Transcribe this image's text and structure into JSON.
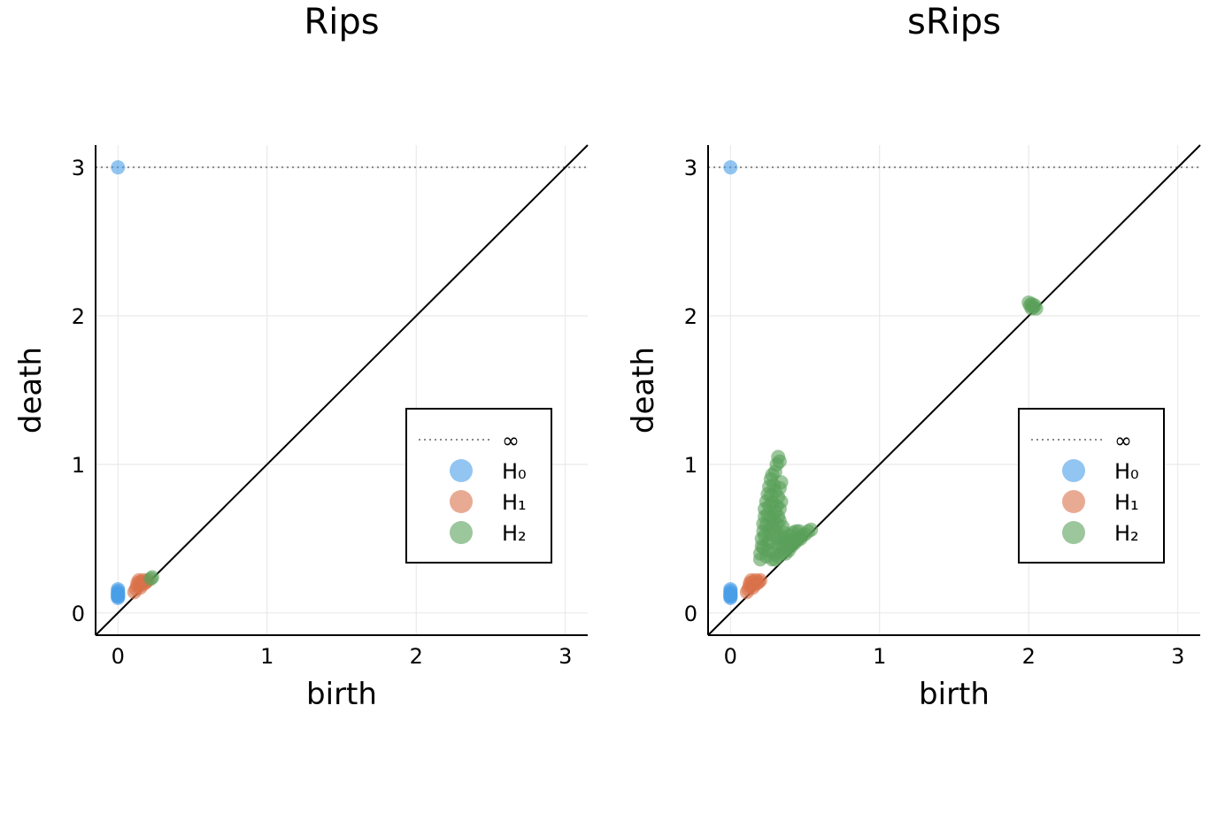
{
  "chart_data": [
    {
      "type": "scatter",
      "title": "Rips",
      "xlabel": "birth",
      "ylabel": "death",
      "xlim": [
        -0.15,
        3.15
      ],
      "ylim": [
        -0.15,
        3.15
      ],
      "xticks": [
        "0",
        "1",
        "2",
        "3"
      ],
      "yticks": [
        "0",
        "1",
        "2",
        "3"
      ],
      "grid": true,
      "legend_position": "bottom-right",
      "infinity_level": 3.0,
      "legend": [
        "∞",
        "H₀",
        "H₁",
        "H₂"
      ],
      "series": [
        {
          "name": "H₀",
          "color": "#4a9ee8",
          "points": [
            [
              0,
              3.0
            ],
            [
              0,
              0.1
            ],
            [
              0,
              0.11
            ],
            [
              0,
              0.12
            ],
            [
              0,
              0.13
            ],
            [
              0,
              0.14
            ],
            [
              0,
              0.15
            ],
            [
              0,
              0.16
            ],
            [
              0,
              0.11
            ],
            [
              0,
              0.12
            ],
            [
              0,
              0.13
            ]
          ]
        },
        {
          "name": "H₁",
          "color": "#d9714a",
          "points": [
            [
              0.11,
              0.14
            ],
            [
              0.12,
              0.16
            ],
            [
              0.13,
              0.18
            ],
            [
              0.13,
              0.2
            ],
            [
              0.14,
              0.22
            ],
            [
              0.15,
              0.17
            ],
            [
              0.15,
              0.21
            ],
            [
              0.16,
              0.19
            ],
            [
              0.17,
              0.22
            ],
            [
              0.18,
              0.2
            ],
            [
              0.19,
              0.21
            ],
            [
              0.2,
              0.22
            ]
          ]
        },
        {
          "name": "H₂",
          "color": "#5aa05a",
          "points": [
            [
              0.22,
              0.23
            ],
            [
              0.23,
              0.24
            ]
          ]
        }
      ]
    },
    {
      "type": "scatter",
      "title": "sRips",
      "xlabel": "birth",
      "ylabel": "death",
      "xlim": [
        -0.15,
        3.15
      ],
      "ylim": [
        -0.15,
        3.15
      ],
      "xticks": [
        "0",
        "1",
        "2",
        "3"
      ],
      "yticks": [
        "0",
        "1",
        "2",
        "3"
      ],
      "grid": true,
      "legend_position": "bottom-right",
      "infinity_level": 3.0,
      "legend": [
        "∞",
        "H₀",
        "H₁",
        "H₂"
      ],
      "series": [
        {
          "name": "H₀",
          "color": "#4a9ee8",
          "points": [
            [
              0,
              3.0
            ],
            [
              0,
              0.1
            ],
            [
              0,
              0.11
            ],
            [
              0,
              0.12
            ],
            [
              0,
              0.13
            ],
            [
              0,
              0.14
            ],
            [
              0,
              0.15
            ],
            [
              0,
              0.16
            ],
            [
              0,
              0.11
            ],
            [
              0,
              0.12
            ],
            [
              0,
              0.13
            ]
          ]
        },
        {
          "name": "H₁",
          "color": "#d9714a",
          "points": [
            [
              0.11,
              0.14
            ],
            [
              0.12,
              0.16
            ],
            [
              0.13,
              0.18
            ],
            [
              0.13,
              0.2
            ],
            [
              0.14,
              0.22
            ],
            [
              0.15,
              0.17
            ],
            [
              0.15,
              0.21
            ],
            [
              0.16,
              0.19
            ],
            [
              0.17,
              0.22
            ],
            [
              0.18,
              0.2
            ],
            [
              0.19,
              0.21
            ],
            [
              0.2,
              0.22
            ]
          ]
        },
        {
          "name": "H₂",
          "color": "#5aa05a",
          "points": [
            [
              0.2,
              0.36
            ],
            [
              0.2,
              0.4
            ],
            [
              0.21,
              0.45
            ],
            [
              0.21,
              0.5
            ],
            [
              0.22,
              0.55
            ],
            [
              0.22,
              0.6
            ],
            [
              0.23,
              0.65
            ],
            [
              0.23,
              0.7
            ],
            [
              0.24,
              0.75
            ],
            [
              0.25,
              0.8
            ],
            [
              0.26,
              0.85
            ],
            [
              0.27,
              0.9
            ],
            [
              0.28,
              0.93
            ],
            [
              0.3,
              0.95
            ],
            [
              0.31,
              1.0
            ],
            [
              0.32,
              1.05
            ],
            [
              0.33,
              1.02
            ],
            [
              0.24,
              0.38
            ],
            [
              0.25,
              0.42
            ],
            [
              0.26,
              0.48
            ],
            [
              0.27,
              0.53
            ],
            [
              0.28,
              0.58
            ],
            [
              0.29,
              0.63
            ],
            [
              0.3,
              0.68
            ],
            [
              0.31,
              0.72
            ],
            [
              0.32,
              0.78
            ],
            [
              0.33,
              0.84
            ],
            [
              0.34,
              0.88
            ],
            [
              0.22,
              0.44
            ],
            [
              0.23,
              0.52
            ],
            [
              0.24,
              0.59
            ],
            [
              0.25,
              0.66
            ],
            [
              0.26,
              0.72
            ],
            [
              0.27,
              0.79
            ],
            [
              0.29,
              0.86
            ],
            [
              0.3,
              0.82
            ],
            [
              0.28,
              0.74
            ],
            [
              0.27,
              0.64
            ],
            [
              0.26,
              0.56
            ],
            [
              0.25,
              0.47
            ],
            [
              0.3,
              0.55
            ],
            [
              0.31,
              0.6
            ],
            [
              0.32,
              0.65
            ],
            [
              0.33,
              0.7
            ],
            [
              0.34,
              0.75
            ],
            [
              0.33,
              0.62
            ],
            [
              0.32,
              0.5
            ],
            [
              0.31,
              0.45
            ],
            [
              0.29,
              0.4
            ],
            [
              0.28,
              0.36
            ],
            [
              0.3,
              0.36
            ],
            [
              0.32,
              0.38
            ],
            [
              0.34,
              0.4
            ],
            [
              0.36,
              0.42
            ],
            [
              0.38,
              0.44
            ],
            [
              0.4,
              0.46
            ],
            [
              0.42,
              0.48
            ],
            [
              0.44,
              0.5
            ],
            [
              0.46,
              0.51
            ],
            [
              0.48,
              0.52
            ],
            [
              0.5,
              0.53
            ],
            [
              0.52,
              0.55
            ],
            [
              0.54,
              0.56
            ],
            [
              0.36,
              0.5
            ],
            [
              0.38,
              0.48
            ],
            [
              0.4,
              0.52
            ],
            [
              0.42,
              0.54
            ],
            [
              0.44,
              0.55
            ],
            [
              0.46,
              0.55
            ],
            [
              0.35,
              0.45
            ],
            [
              0.37,
              0.4
            ],
            [
              0.39,
              0.42
            ],
            [
              0.41,
              0.45
            ],
            [
              0.43,
              0.47
            ],
            [
              0.45,
              0.49
            ],
            [
              0.47,
              0.5
            ],
            [
              0.35,
              0.58
            ],
            [
              0.36,
              0.54
            ],
            [
              0.34,
              0.52
            ],
            [
              0.33,
              0.46
            ],
            [
              2.0,
              2.09
            ],
            [
              2.01,
              2.07
            ],
            [
              2.02,
              2.08
            ],
            [
              2.03,
              2.06
            ],
            [
              2.04,
              2.07
            ],
            [
              2.05,
              2.05
            ],
            [
              2.02,
              2.05
            ]
          ]
        }
      ]
    }
  ]
}
